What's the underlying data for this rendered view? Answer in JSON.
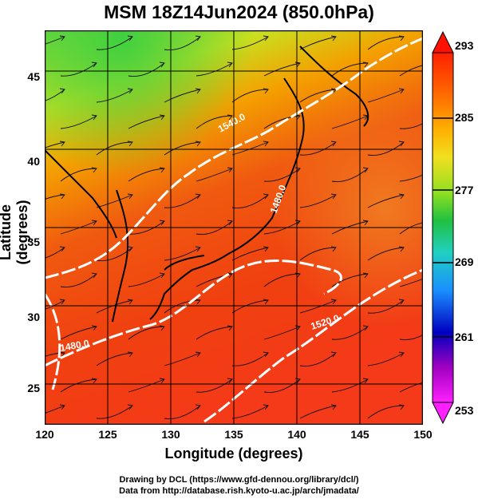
{
  "title": "MSM 18Z14Jun2024 (850.0hPa)",
  "axes": {
    "xlabel": "Longitude (degrees)",
    "ylabel": "Latitude  (degrees)",
    "x_ticks": [
      "120",
      "125",
      "130",
      "135",
      "140",
      "145",
      "150"
    ],
    "y_ticks": [
      "45",
      "40",
      "35",
      "30",
      "25"
    ]
  },
  "colorbar": {
    "ticks": [
      "293",
      "285",
      "277",
      "269",
      "261",
      "253"
    ],
    "colors": [
      "#ff0000",
      "#ff6a00",
      "#ffb000",
      "#f0e020",
      "#90e020",
      "#20c040",
      "#20d0c0",
      "#1a8fff",
      "#0000c0",
      "#a000c0",
      "#ff20ff"
    ]
  },
  "contours": [
    {
      "label": "1540.0"
    },
    {
      "label": "1480.0"
    },
    {
      "label": "1520.0"
    },
    {
      "label": "1480.0"
    }
  ],
  "credits": {
    "line1": "Drawing by DCL (https://www.gfd-dennou.org/library/dcl/)",
    "line2": "Data from http://database.rish.kyoto-u.ac.jp/arch/jmadata/"
  },
  "chart_data": {
    "type": "heatmap",
    "variable": "temperature",
    "x_range": [
      120,
      150
    ],
    "y_range": [
      22.4,
      47.6
    ],
    "color_range": [
      253,
      293
    ]
  }
}
